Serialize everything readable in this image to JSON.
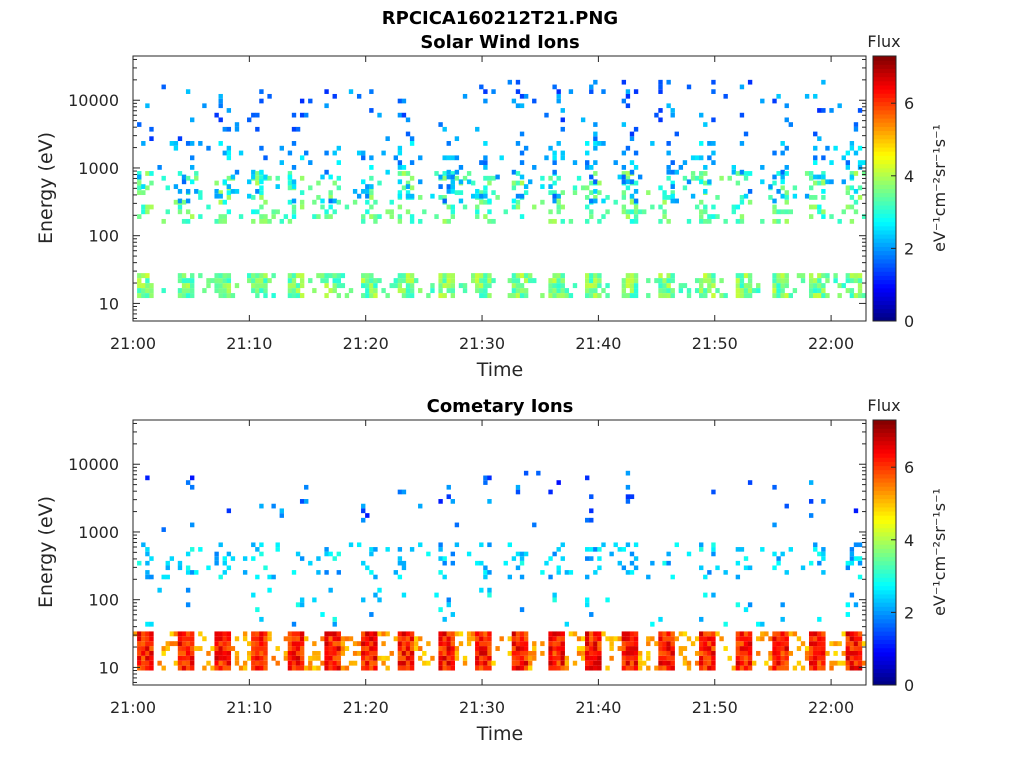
{
  "figure": {
    "title": "RPCICA160212T21.PNG"
  },
  "chart_data": [
    {
      "type": "heatmap",
      "title": "Solar Wind Ions",
      "xlabel": "Time",
      "ylabel": "Energy (eV)",
      "x_scale": "time",
      "y_scale": "log",
      "xlim": [
        "21:00",
        "22:03"
      ],
      "ylim": [
        5.5,
        45000
      ],
      "x_ticks": [
        "21:00",
        "21:10",
        "21:20",
        "21:30",
        "21:40",
        "21:50",
        "22:00"
      ],
      "y_ticks": [
        "10",
        "100",
        "1000",
        "10000"
      ],
      "colorbar": {
        "title": "Flux",
        "label": "eV⁻¹cm⁻²sr⁻¹s⁻¹",
        "range": [
          0,
          7.3
        ],
        "ticks": [
          "0",
          "2",
          "4",
          "6"
        ],
        "colormap": "jet"
      },
      "bands": [
        {
          "energy": [
            12,
            28
          ],
          "level": 3.0,
          "level2": 4.2,
          "density": 0.4
        },
        {
          "energy": [
            150,
            900
          ],
          "level": 3.0,
          "level2": 4.0,
          "density": 0.2
        },
        {
          "energy": [
            300,
            2500
          ],
          "level": 1.8,
          "level2": 2.8,
          "density": 0.1
        },
        {
          "energy": [
            2500,
            20000
          ],
          "level": 1.5,
          "level2": 2.4,
          "density": 0.05
        }
      ]
    },
    {
      "type": "heatmap",
      "title": "Cometary Ions",
      "xlabel": "Time",
      "ylabel": "Energy (eV)",
      "x_scale": "time",
      "y_scale": "log",
      "xlim": [
        "21:00",
        "22:03"
      ],
      "ylim": [
        5.5,
        45000
      ],
      "x_ticks": [
        "21:00",
        "21:10",
        "21:20",
        "21:30",
        "21:40",
        "21:50",
        "22:00"
      ],
      "y_ticks": [
        "10",
        "100",
        "1000",
        "10000"
      ],
      "colorbar": {
        "title": "Flux",
        "label": "eV⁻¹cm⁻²sr⁻¹s⁻¹",
        "range": [
          0,
          7.3
        ],
        "ticks": [
          "0",
          "2",
          "4",
          "6"
        ],
        "colormap": "jet"
      },
      "bands": [
        {
          "energy": [
            9,
            34
          ],
          "level": 4.8,
          "level2": 6.8,
          "density": 0.65
        },
        {
          "energy": [
            200,
            700
          ],
          "level": 2.0,
          "level2": 3.0,
          "density": 0.12
        },
        {
          "energy": [
            40,
            150
          ],
          "level": 2.2,
          "level2": 3.0,
          "density": 0.04
        },
        {
          "energy": [
            1000,
            8000
          ],
          "level": 1.6,
          "level2": 2.2,
          "density": 0.02
        }
      ]
    }
  ]
}
